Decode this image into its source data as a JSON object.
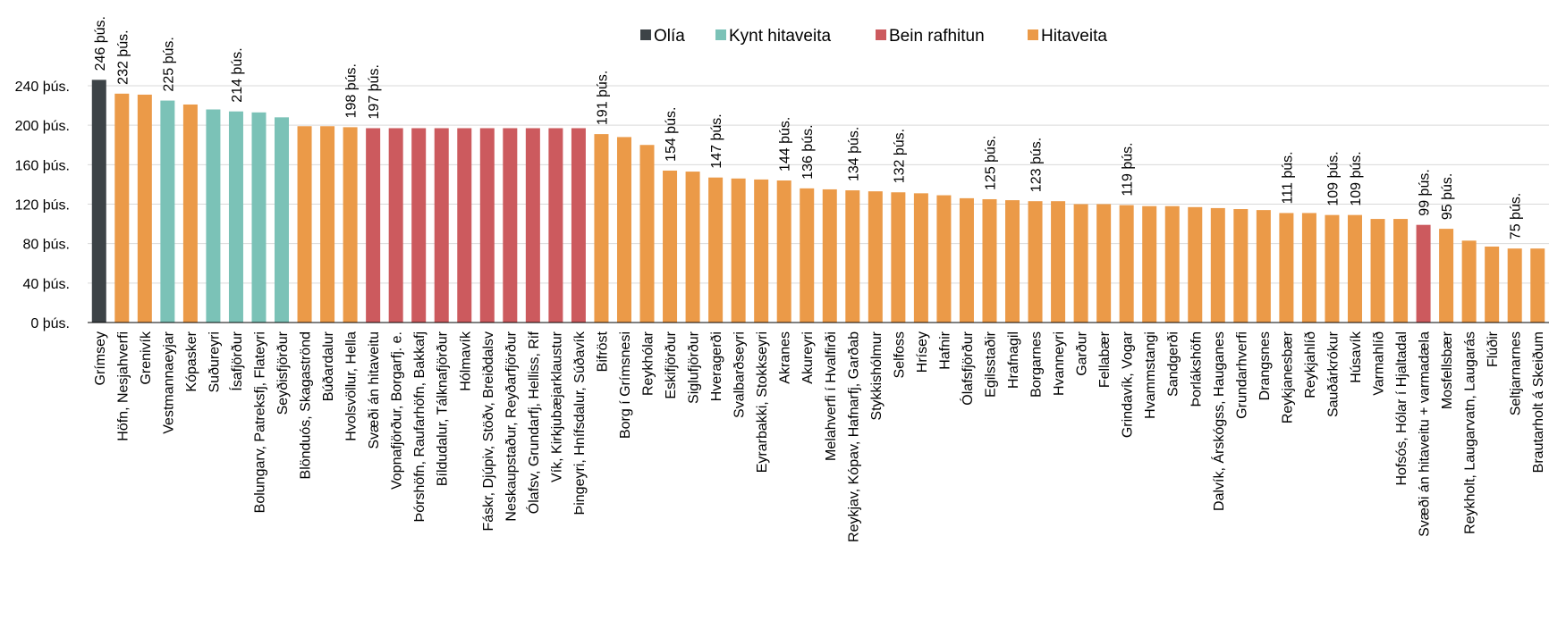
{
  "chart_data": {
    "type": "bar",
    "title": "",
    "xlabel": "",
    "ylabel": "",
    "ylim": [
      0,
      240
    ],
    "yticks": [
      0,
      40,
      80,
      120,
      160,
      200,
      240
    ],
    "ytick_labels": [
      "0 þús.",
      "40 þús.",
      "80 þús.",
      "120 þús.",
      "160 þús.",
      "200 þús.",
      "240 þús."
    ],
    "grid": true,
    "legend_position": "top-center",
    "legend": [
      {
        "key": "olia",
        "label": "Olía",
        "color": "#3d4347"
      },
      {
        "key": "kynt",
        "label": "Kynt hitaveita",
        "color": "#7bc2b7"
      },
      {
        "key": "bein",
        "label": "Bein rafhitun",
        "color": "#cc5a5e"
      },
      {
        "key": "hita",
        "label": "Hitaveita",
        "color": "#eb9a48"
      }
    ],
    "bars": [
      {
        "category": "Grímsey",
        "value": 246,
        "type": "olia",
        "label": "246 þús."
      },
      {
        "category": "Höfn, Nesjahverfi",
        "value": 232,
        "type": "hita",
        "label": "232 þús."
      },
      {
        "category": "Grenivík",
        "value": 231,
        "type": "hita",
        "label": ""
      },
      {
        "category": "Vestmannaeyjar",
        "value": 225,
        "type": "kynt",
        "label": "225 þús."
      },
      {
        "category": "Kópasker",
        "value": 221,
        "type": "hita",
        "label": ""
      },
      {
        "category": "Suðureyri",
        "value": 216,
        "type": "kynt",
        "label": ""
      },
      {
        "category": "Ísafjörður",
        "value": 214,
        "type": "kynt",
        "label": "214 þús."
      },
      {
        "category": "Bolungarv, Patreksfj, Flateyri",
        "value": 213,
        "type": "kynt",
        "label": ""
      },
      {
        "category": "Seyðisfjörður",
        "value": 208,
        "type": "kynt",
        "label": ""
      },
      {
        "category": "Blönduós, Skagaströnd",
        "value": 199,
        "type": "hita",
        "label": ""
      },
      {
        "category": "Búðardalur",
        "value": 199,
        "type": "hita",
        "label": ""
      },
      {
        "category": "Hvolsvöllur, Hella",
        "value": 198,
        "type": "hita",
        "label": "198 þús."
      },
      {
        "category": "Svæði án hitaveitu",
        "value": 197,
        "type": "bein",
        "label": "197 þús."
      },
      {
        "category": "Vopnafjörður, Borgarfj. e.",
        "value": 197,
        "type": "bein",
        "label": ""
      },
      {
        "category": "Þórshöfn, Raufarhöfn, Bakkafj",
        "value": 197,
        "type": "bein",
        "label": ""
      },
      {
        "category": "Bíldudalur, Tálknafjörður",
        "value": 197,
        "type": "bein",
        "label": ""
      },
      {
        "category": "Hólmavík",
        "value": 197,
        "type": "bein",
        "label": ""
      },
      {
        "category": "Fáskr, Djúpiv, Stöðv, Breiðdalsv",
        "value": 197,
        "type": "bein",
        "label": ""
      },
      {
        "category": "Neskaupstaður, Reyðarfjörður",
        "value": 197,
        "type": "bein",
        "label": ""
      },
      {
        "category": "Ólafsv, Grundarfj, Helliss, Rif",
        "value": 197,
        "type": "bein",
        "label": ""
      },
      {
        "category": "Vík, Kirkjubæjarklaustur",
        "value": 197,
        "type": "bein",
        "label": ""
      },
      {
        "category": "Þingeyri, Hnífsdalur, Súðavík",
        "value": 197,
        "type": "bein",
        "label": ""
      },
      {
        "category": "Bifröst",
        "value": 191,
        "type": "hita",
        "label": "191 þús."
      },
      {
        "category": "Borg í Grímsnesi",
        "value": 188,
        "type": "hita",
        "label": ""
      },
      {
        "category": "Reykhólar",
        "value": 180,
        "type": "hita",
        "label": ""
      },
      {
        "category": "Eskifjörður",
        "value": 154,
        "type": "hita",
        "label": "154 þús."
      },
      {
        "category": "Siglufjörður",
        "value": 153,
        "type": "hita",
        "label": ""
      },
      {
        "category": "Hveragerði",
        "value": 147,
        "type": "hita",
        "label": "147 þús."
      },
      {
        "category": "Svalbarðseyri",
        "value": 146,
        "type": "hita",
        "label": ""
      },
      {
        "category": "Eyrarbakki, Stokkseyri",
        "value": 145,
        "type": "hita",
        "label": ""
      },
      {
        "category": "Akranes",
        "value": 144,
        "type": "hita",
        "label": "144 þús."
      },
      {
        "category": "Akureyri",
        "value": 136,
        "type": "hita",
        "label": "136 þús."
      },
      {
        "category": "Melahverfi í Hvalfirði",
        "value": 135,
        "type": "hita",
        "label": ""
      },
      {
        "category": "Reykjav, Kópav, Hafnarfj, Garðab",
        "value": 134,
        "type": "hita",
        "label": "134 þús."
      },
      {
        "category": "Stykkishólmur",
        "value": 133,
        "type": "hita",
        "label": ""
      },
      {
        "category": "Selfoss",
        "value": 132,
        "type": "hita",
        "label": "132 þús."
      },
      {
        "category": "Hrísey",
        "value": 131,
        "type": "hita",
        "label": ""
      },
      {
        "category": "Hafnir",
        "value": 129,
        "type": "hita",
        "label": ""
      },
      {
        "category": "Ólafsfjörður",
        "value": 126,
        "type": "hita",
        "label": ""
      },
      {
        "category": "Egilsstaðir",
        "value": 125,
        "type": "hita",
        "label": "125 þús."
      },
      {
        "category": "Hrafnagil",
        "value": 124,
        "type": "hita",
        "label": ""
      },
      {
        "category": "Borgarnes",
        "value": 123,
        "type": "hita",
        "label": "123 þús."
      },
      {
        "category": "Hvanneyri",
        "value": 123,
        "type": "hita",
        "label": ""
      },
      {
        "category": "Garður",
        "value": 120,
        "type": "hita",
        "label": ""
      },
      {
        "category": "Fellabær",
        "value": 120,
        "type": "hita",
        "label": ""
      },
      {
        "category": "Grindavík, Vogar",
        "value": 119,
        "type": "hita",
        "label": "119 þús."
      },
      {
        "category": "Hvammstangi",
        "value": 118,
        "type": "hita",
        "label": ""
      },
      {
        "category": "Sandgerði",
        "value": 118,
        "type": "hita",
        "label": ""
      },
      {
        "category": "Þorlákshöfn",
        "value": 117,
        "type": "hita",
        "label": ""
      },
      {
        "category": "Dalvík, Árskógss, Hauganes",
        "value": 116,
        "type": "hita",
        "label": ""
      },
      {
        "category": "Grundarhverfi",
        "value": 115,
        "type": "hita",
        "label": ""
      },
      {
        "category": "Drangsnes",
        "value": 114,
        "type": "hita",
        "label": ""
      },
      {
        "category": "Reykjanesbær",
        "value": 111,
        "type": "hita",
        "label": "111 þús."
      },
      {
        "category": "Reykjahlíð",
        "value": 111,
        "type": "hita",
        "label": ""
      },
      {
        "category": "Sauðárkrókur",
        "value": 109,
        "type": "hita",
        "label": "109 þús."
      },
      {
        "category": "Húsavík",
        "value": 109,
        "type": "hita",
        "label": "109 þús."
      },
      {
        "category": "Varmahlíð",
        "value": 105,
        "type": "hita",
        "label": ""
      },
      {
        "category": "Hofsós, Hólar í Hjaltadal",
        "value": 105,
        "type": "hita",
        "label": ""
      },
      {
        "category": "Svæði án hitaveitu + varmadæla",
        "value": 99,
        "type": "bein",
        "label": "99 þús."
      },
      {
        "category": "Mosfellsbær",
        "value": 95,
        "type": "hita",
        "label": "95 þús."
      },
      {
        "category": "Reykholt, Laugarvatn, Laugarás",
        "value": 83,
        "type": "hita",
        "label": ""
      },
      {
        "category": "Flúðir",
        "value": 77,
        "type": "hita",
        "label": ""
      },
      {
        "category": "Seltjarnarnes",
        "value": 75,
        "type": "hita",
        "label": "75 þús."
      },
      {
        "category": "Brautarholt á Skeiðum",
        "value": 75,
        "type": "hita",
        "label": ""
      }
    ]
  }
}
